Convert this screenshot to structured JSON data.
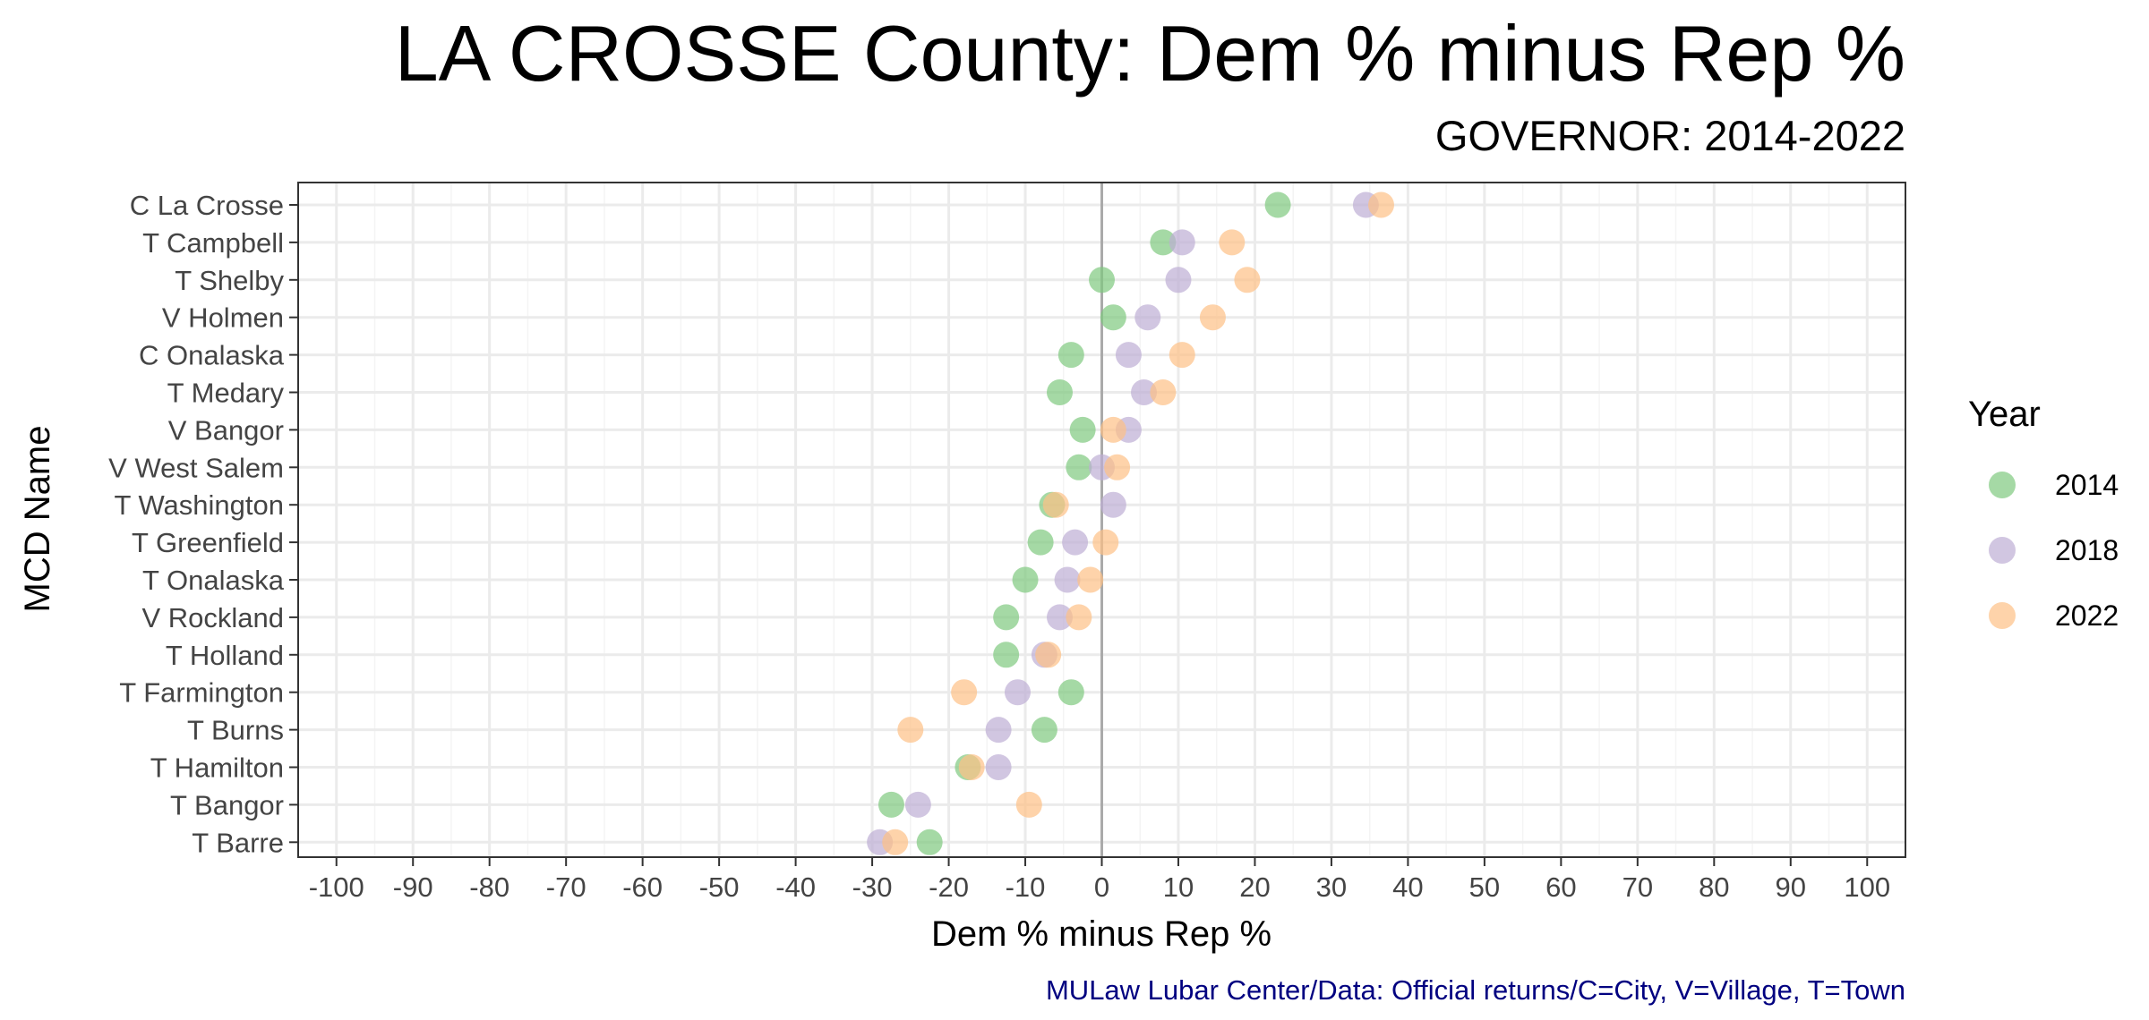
{
  "chart_data": {
    "type": "scatter",
    "title": "LA CROSSE County: Dem % minus Rep %",
    "subtitle": "GOVERNOR: 2014-2022",
    "xlabel": "Dem % minus Rep %",
    "ylabel": "MCD Name",
    "caption": "MULaw Lubar Center/Data: Official returns/C=City, V=Village, T=Town",
    "xlim": [
      -105,
      105
    ],
    "x_ticks": [
      -100,
      -90,
      -80,
      -70,
      -60,
      -50,
      -40,
      -30,
      -20,
      -10,
      0,
      10,
      20,
      30,
      40,
      50,
      60,
      70,
      80,
      90,
      100
    ],
    "x_tick_labels": [
      "-100",
      "-90",
      "-80",
      "-70",
      "-60",
      "-50",
      "-40",
      "-30",
      "-20",
      "-10",
      "0",
      "10",
      "20",
      "30",
      "40",
      "50",
      "60",
      "70",
      "80",
      "90",
      "100"
    ],
    "grid": true,
    "reference_line_x": 0,
    "legend": {
      "title": "Year",
      "position": "right"
    },
    "categories": [
      "C La Crosse",
      "T Campbell",
      "T Shelby",
      "V Holmen",
      "C Onalaska",
      "T Medary",
      "V Bangor",
      "V West Salem",
      "T Washington",
      "T Greenfield",
      "T Onalaska",
      "V Rockland",
      "T Holland",
      "T Farmington",
      "T Burns",
      "T Hamilton",
      "T Bangor",
      "T Barre"
    ],
    "series": [
      {
        "name": "2014",
        "color": "#7fc97f",
        "values": [
          23,
          8,
          0,
          1.5,
          -4,
          -5.5,
          -2.5,
          -3,
          -6.5,
          -8,
          -10,
          -12.5,
          -12.5,
          -4,
          -7.5,
          -17.5,
          -27.5,
          -22.5
        ]
      },
      {
        "name": "2018",
        "color": "#beaed4",
        "values": [
          34.5,
          10.5,
          10,
          6,
          3.5,
          5.5,
          3.5,
          0,
          1.5,
          -3.5,
          -4.5,
          -5.5,
          -7.5,
          -11,
          -13.5,
          -13.5,
          -24,
          -29
        ]
      },
      {
        "name": "2022",
        "color": "#fdc086",
        "values": [
          36.5,
          17,
          19,
          14.5,
          10.5,
          8,
          1.5,
          2,
          -6,
          0.5,
          -1.5,
          -3,
          -7,
          -18,
          -25,
          -17,
          -9.5,
          -27
        ]
      }
    ]
  },
  "colors": {
    "caption": "#000080",
    "grid_major": "#ebebeb",
    "grid_minor": "#f4f4f4",
    "zero_line": "#aaaaaa",
    "panel_border": "#333333"
  }
}
